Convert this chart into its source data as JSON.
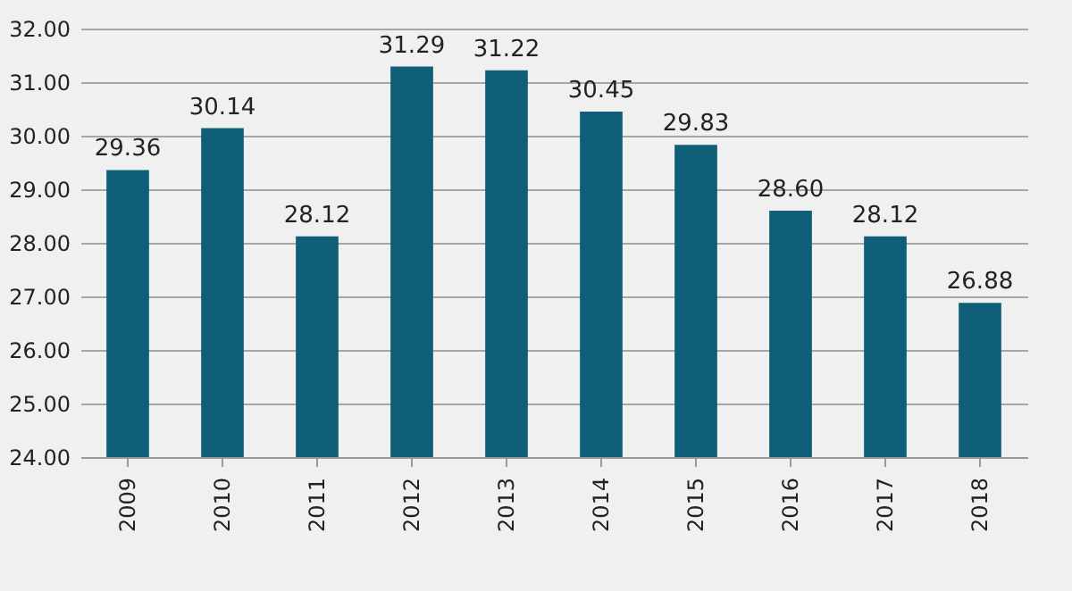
{
  "chart_data": {
    "type": "bar",
    "categories": [
      "2009",
      "2010",
      "2011",
      "2012",
      "2013",
      "2014",
      "2015",
      "2016",
      "2017",
      "2018"
    ],
    "values": [
      29.36,
      30.14,
      28.12,
      31.29,
      31.22,
      30.45,
      29.83,
      28.6,
      28.12,
      26.88
    ],
    "value_labels": [
      "29.36",
      "30.14",
      "28.12",
      "31.29",
      "31.22",
      "30.45",
      "29.83",
      "28.60",
      "28.12",
      "26.88"
    ],
    "color": "#0f5f78",
    "ylim": [
      24,
      32
    ],
    "yticks": [
      {
        "value": 24,
        "label": "24.00"
      },
      {
        "value": 25,
        "label": "25.00"
      },
      {
        "value": 26,
        "label": "26.00"
      },
      {
        "value": 27,
        "label": "27.00"
      },
      {
        "value": 28,
        "label": "28.00"
      },
      {
        "value": 29,
        "label": "29.00"
      },
      {
        "value": 30,
        "label": "30.00"
      },
      {
        "value": 31,
        "label": "31.00"
      },
      {
        "value": 32,
        "label": "32.00"
      }
    ],
    "grid": "y"
  }
}
